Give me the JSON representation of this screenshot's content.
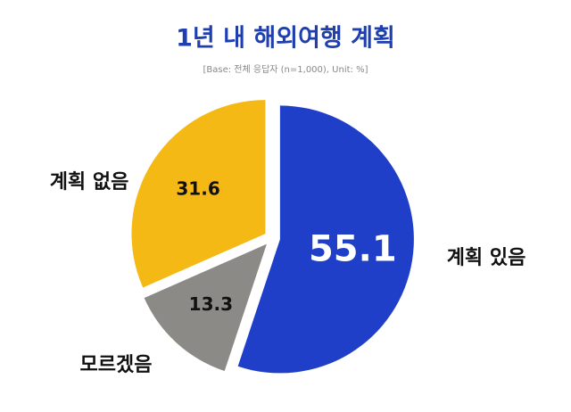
{
  "chart_data": {
    "type": "pie",
    "title": "1년 내 해외여행 계획",
    "subtitle": "[Base: 전체 응답자 (n=1,000), Unit: %]",
    "categories": [
      "계획 있음",
      "모르겠음",
      "계획 없음"
    ],
    "values": [
      55.1,
      13.3,
      31.6
    ],
    "colors": [
      "#1f3fc9",
      "#8c8a86",
      "#f5b915"
    ]
  }
}
